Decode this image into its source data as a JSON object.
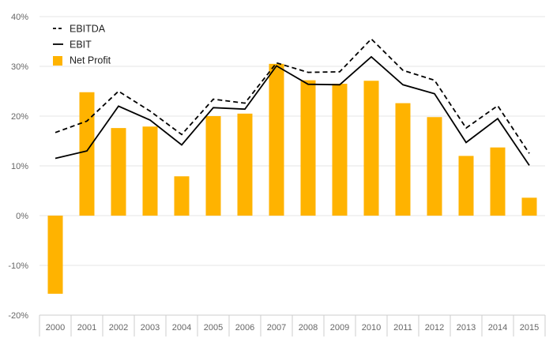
{
  "chart_data": {
    "type": "bar",
    "categories": [
      "2000",
      "2001",
      "2002",
      "2003",
      "2004",
      "2005",
      "2006",
      "2007",
      "2008",
      "2009",
      "2010",
      "2011",
      "2012",
      "2013",
      "2014",
      "2015"
    ],
    "series": [
      {
        "name": "EBITDA",
        "kind": "line",
        "style": "dashed",
        "color": "#000000",
        "values": [
          16.7,
          19.0,
          25.0,
          21.0,
          16.3,
          23.4,
          22.6,
          30.7,
          28.8,
          28.9,
          35.5,
          29.2,
          27.2,
          17.6,
          22.1,
          12.5
        ]
      },
      {
        "name": "EBIT",
        "kind": "line",
        "style": "solid",
        "color": "#000000",
        "values": [
          11.5,
          13.0,
          22.0,
          19.2,
          14.2,
          21.7,
          21.4,
          30.1,
          26.4,
          26.3,
          31.9,
          26.3,
          24.5,
          14.7,
          19.5,
          10.1
        ]
      },
      {
        "name": "Net Profit",
        "kind": "bar",
        "color": "#FFB300",
        "values": [
          -15.7,
          24.8,
          17.6,
          17.9,
          7.9,
          20.0,
          20.5,
          30.5,
          27.2,
          26.5,
          27.1,
          22.6,
          19.8,
          12.0,
          13.7,
          3.6
        ]
      }
    ],
    "ylim": [
      -20,
      40
    ],
    "yticks": [
      -20,
      -10,
      0,
      10,
      20,
      30,
      40
    ],
    "ytick_labels": [
      "-20%",
      "-10%",
      "0%",
      "10%",
      "20%",
      "30%",
      "40%"
    ],
    "grid": "horizontal",
    "legend_position": "top-left",
    "title": "",
    "xlabel": "",
    "ylabel": ""
  }
}
